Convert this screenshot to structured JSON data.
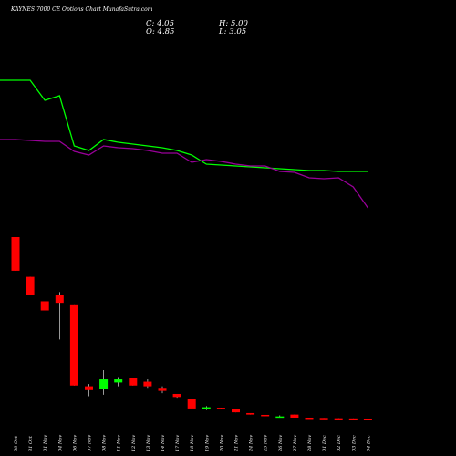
{
  "chart_data": {
    "type": "candlestick",
    "title": "KAYNES 7000  CE Options  Chart MunafaSutra.com",
    "ohlc_readout": {
      "close": "C: 4.05",
      "high": "H: 5.00",
      "open": "O: 4.85",
      "low": "L: 3.05"
    },
    "categories": [
      "30 Oct",
      "31 Oct",
      "01 Nov",
      "04 Nov",
      "06 Nov",
      "07 Nov",
      "08 Nov",
      "11 Nov",
      "12 Nov",
      "13 Nov",
      "14 Nov",
      "17 Nov",
      "18 Nov",
      "19 Nov",
      "20 Nov",
      "21 Nov",
      "24 Nov",
      "25 Nov",
      "26 Nov",
      "27 Nov",
      "28 Nov",
      "01 Dec",
      "02 Dec",
      "03 Dec",
      "04 Dec"
    ],
    "candles": [
      {
        "o": 1120,
        "h": 1120,
        "l": 900,
        "c": 900,
        "dir": "down"
      },
      {
        "o": 860,
        "h": 860,
        "l": 740,
        "c": 740,
        "dir": "down"
      },
      {
        "o": 700,
        "h": 700,
        "l": 640,
        "c": 640,
        "dir": "down"
      },
      {
        "o": 740,
        "h": 760,
        "l": 450,
        "c": 690,
        "dir": "down"
      },
      {
        "o": 680,
        "h": 680,
        "l": 150,
        "c": 150,
        "dir": "down"
      },
      {
        "o": 145,
        "h": 160,
        "l": 80,
        "c": 120,
        "dir": "down"
      },
      {
        "o": 130,
        "h": 250,
        "l": 90,
        "c": 190,
        "dir": "up"
      },
      {
        "o": 170,
        "h": 205,
        "l": 145,
        "c": 190,
        "dir": "up"
      },
      {
        "o": 200,
        "h": 200,
        "l": 150,
        "c": 150,
        "dir": "down"
      },
      {
        "o": 175,
        "h": 190,
        "l": 135,
        "c": 145,
        "dir": "down"
      },
      {
        "o": 135,
        "h": 145,
        "l": 100,
        "c": 115,
        "dir": "down"
      },
      {
        "o": 95,
        "h": 95,
        "l": 70,
        "c": 75,
        "dir": "down"
      },
      {
        "o": 60,
        "h": 60,
        "l": 0,
        "c": 0,
        "dir": "down"
      },
      {
        "o": 0,
        "h": 15,
        "l": -10,
        "c": 8,
        "dir": "up"
      },
      {
        "o": 5,
        "h": 5,
        "l": -5,
        "c": -3,
        "dir": "down"
      },
      {
        "o": -5,
        "h": -5,
        "l": -25,
        "c": -25,
        "dir": "down"
      },
      {
        "o": -30,
        "h": -30,
        "l": -40,
        "c": -40,
        "dir": "down"
      },
      {
        "o": -42,
        "h": -42,
        "l": -50,
        "c": -50,
        "dir": "down"
      },
      {
        "o": -52,
        "h": -45,
        "l": -60,
        "c": -55,
        "dir": "up"
      },
      {
        "o": -40,
        "h": -40,
        "l": -60,
        "c": -60,
        "dir": "down"
      },
      {
        "o": -60,
        "h": -60,
        "l": -64,
        "c": -64,
        "dir": "down"
      },
      {
        "o": -62,
        "h": -62,
        "l": -66,
        "c": -66,
        "dir": "down"
      },
      {
        "o": -64,
        "h": -64,
        "l": -68,
        "c": -68,
        "dir": "down"
      },
      {
        "o": -65,
        "h": -65,
        "l": -70,
        "c": -70,
        "dir": "down"
      },
      {
        "o": -66,
        "h": -66,
        "l": -72,
        "c": -72,
        "dir": "down"
      }
    ],
    "moving_averages": [
      {
        "color": "#00ff00",
        "values": [
          88,
          88,
          110,
          105,
          160,
          165,
          153,
          156,
          158,
          160,
          162,
          165,
          170,
          180,
          181,
          182,
          183,
          184,
          185,
          186,
          187,
          187,
          188,
          188,
          188
        ]
      },
      {
        "color": "#990099",
        "values": [
          153,
          154,
          155,
          155,
          166,
          170,
          160,
          162,
          163,
          165,
          168,
          168,
          178,
          175,
          177,
          180,
          182,
          182,
          188,
          189,
          195,
          196,
          195,
          205,
          228
        ]
      }
    ],
    "colors": {
      "background": "#000000",
      "up": "#00ff00",
      "down": "#ff0000",
      "wick": "#ffffff",
      "text": "#ffffff"
    }
  }
}
